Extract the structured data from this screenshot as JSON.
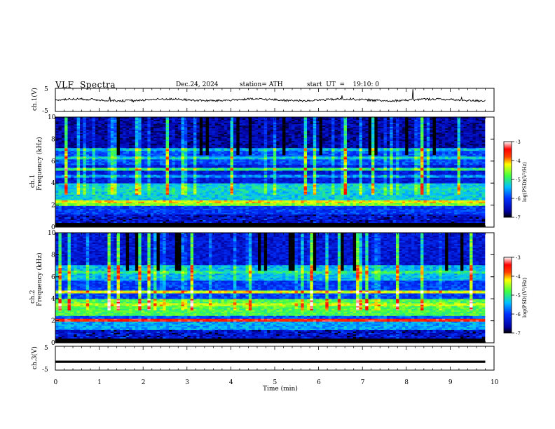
{
  "header": {
    "title": "VLF  Spectra",
    "date": "Dec.24, 2024",
    "station": "station= ATH",
    "start": "start  UT  =    19:10: 0"
  },
  "colors": {
    "background": "#ffffff",
    "axis": "#000000",
    "trace": "#000000",
    "colormap": [
      "#000000",
      "#0000a0",
      "#0030ff",
      "#00a0ff",
      "#00e0c0",
      "#40ff40",
      "#c0ff00",
      "#ffff00",
      "#ff8000",
      "#ff0000",
      "#ffffff"
    ]
  },
  "chart_data": [
    {
      "type": "line",
      "id": "ch1_waveform",
      "ylabel": "ch.1(V)",
      "ylim": [
        -5,
        5
      ],
      "yticks": [
        "5",
        "-5"
      ],
      "xlim": [
        0,
        10
      ],
      "description_of_series": "noisy trace centered near 0 V, amplitude about ±1 V with impulsive spikes",
      "baseline_v": 0.0
    },
    {
      "type": "heatmap",
      "id": "ch1_spectrogram",
      "ylabel": "ch.1\nFrequency (kHz)",
      "ylabel_line1": "ch.1",
      "ylabel_line2": "Frequency  (kHz)",
      "xlim": [
        0,
        9.8
      ],
      "ylim": [
        0,
        10
      ],
      "yticks": [
        "0",
        "2",
        "4",
        "6",
        "8",
        "10"
      ],
      "colorbar": {
        "label": "log(PSD)(V²/Hz)",
        "range": [
          -7,
          -3
        ],
        "ticks": [
          "-3",
          "-4",
          "-5",
          "-6",
          "-7"
        ]
      },
      "bands_khz": [
        {
          "f": 2.1,
          "level": -4.6
        },
        {
          "f": 2.3,
          "level": -4.2
        },
        {
          "f": 3.4,
          "level": -5.2
        },
        {
          "f": 4.6,
          "level": -5.6
        },
        {
          "f": 5.2,
          "level": -5.0
        },
        {
          "f": 6.3,
          "level": -5.3
        },
        {
          "f": 7.0,
          "level": -5.4
        }
      ]
    },
    {
      "type": "heatmap",
      "id": "ch2_spectrogram",
      "ylabel_line1": "ch.2",
      "ylabel_line2": "Frequency  (kHz)",
      "xlim": [
        0,
        9.8
      ],
      "ylim": [
        0,
        10
      ],
      "yticks": [
        "0",
        "2",
        "4",
        "6",
        "8",
        "10"
      ],
      "colorbar": {
        "label": "log(PSD)(V²/Hz)",
        "range": [
          -7,
          -3
        ],
        "ticks": [
          "-3",
          "-4",
          "-5",
          "-6",
          "-7"
        ]
      },
      "bands_khz": [
        {
          "f": 2.0,
          "level": -4.0
        },
        {
          "f": 2.1,
          "level": -3.5
        },
        {
          "f": 3.5,
          "level": -4.4
        },
        {
          "f": 4.6,
          "level": -4.3
        },
        {
          "f": 6.4,
          "level": -5.0
        }
      ]
    },
    {
      "type": "line",
      "id": "ch3_waveform",
      "ylabel": "ch.3(V)",
      "ylim": [
        -5,
        5
      ],
      "yticks": [
        "5",
        "-5"
      ],
      "xlim": [
        0,
        10
      ],
      "xlabel": "Time  (min)",
      "xticks": [
        "0",
        "1",
        "2",
        "3",
        "4",
        "5",
        "6",
        "7",
        "8",
        "9",
        "10"
      ],
      "baseline_v": -1.5
    }
  ]
}
